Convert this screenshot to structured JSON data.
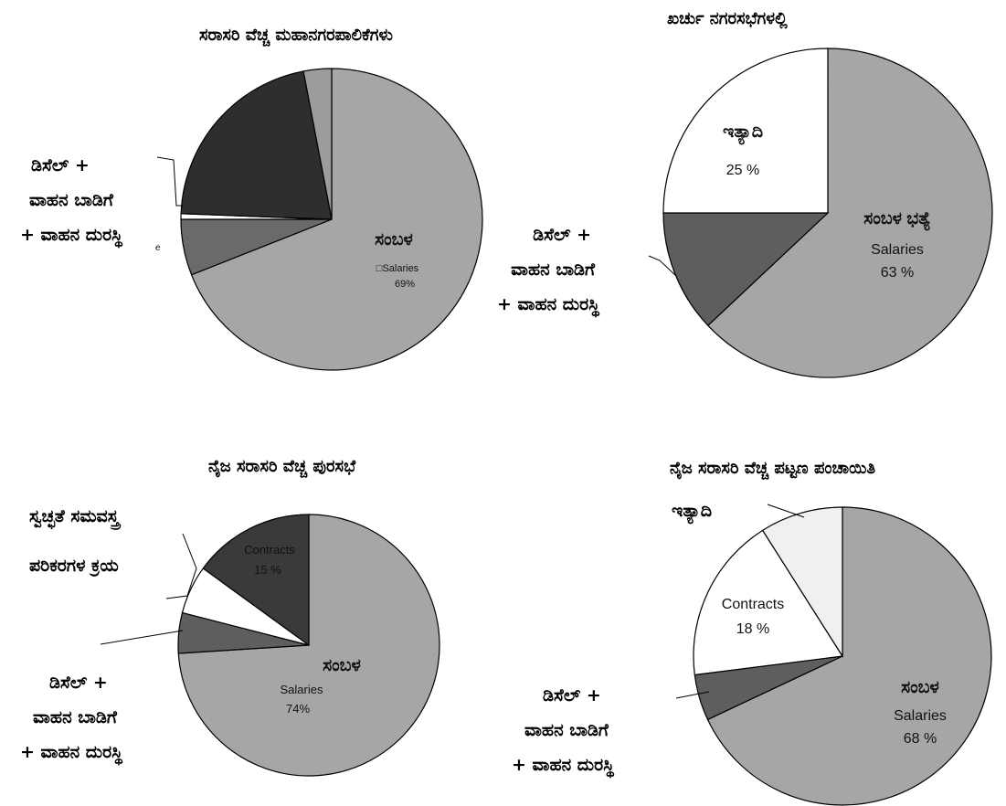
{
  "chart_data": [
    {
      "type": "pie",
      "title": "ಸರಾಸರಿ ವೆಚ್ಚ ಮಹಾನಗರಪಾಲಿಕೆಗಳು",
      "slices": [
        {
          "label": "ಸಂಬಳ",
          "sublabel": "□Salaries",
          "value": 69,
          "value_text": "69%",
          "color": "#a6a6a6"
        },
        {
          "label": "",
          "value": 6,
          "color": "#6a6a6a"
        },
        {
          "label": "ಡಿಸೆಲ್ + ವಾಹನ ಬಾಡಿಗೆ + ವಾಹನ ದುರಸ್ಥಿ",
          "value": 0.6,
          "color": "#ffffff"
        },
        {
          "label": "",
          "value": 21.4,
          "color": "#2e2e2e"
        },
        {
          "label": "",
          "value": 3,
          "color": "#9c9c9c"
        }
      ],
      "side_labels": [
        "ಡಿಸೆಲ್ +",
        "ವಾಹನ ಬಾಡಿಗೆ",
        "+ ವಾಹನ ದುರಸ್ಥಿ"
      ],
      "fragment": "e"
    },
    {
      "type": "pie",
      "title": "ಖರ್ಚು ನಗರಸಭೆಗಳಲ್ಲಿ",
      "slices": [
        {
          "label": "ಸಂಬಳ ಭತ್ಯೆ",
          "sublabel": "Salaries",
          "value": 63,
          "value_text": "63 %",
          "color": "#a6a6a6"
        },
        {
          "label": "ಡಿಸೆಲ್ + ವಾಹನ ಬಾಡಿಗೆ + ವಾಹನ ದುರಸ್ಥಿ",
          "value": 12,
          "color": "#5e5e5e"
        },
        {
          "label": "ಇತ್ಯಾದಿ",
          "value": 25,
          "value_text": "25 %",
          "color": "#ffffff"
        }
      ],
      "side_labels": [
        "ಡಿಸೆಲ್ +",
        "ವಾಹನ ಬಾಡಿಗೆ",
        "+ ವಾಹನ ದುರಸ್ಥಿ"
      ]
    },
    {
      "type": "pie",
      "title": "ನೈಜ ಸರಾಸರಿ ವೆಚ್ಚ ಪುರಸಭೆ",
      "slices": [
        {
          "label": "ಸಂಬಳ",
          "sublabel": "Salaries",
          "value": 74,
          "value_text": "74%",
          "color": "#a6a6a6"
        },
        {
          "label": "ಡಿಸೆಲ್ + ವಾಹನ ಬಾಡಿಗೆ + ವಾಹನ ದುರಸ್ಥಿ",
          "value": 5,
          "color": "#5e5e5e"
        },
        {
          "label": "ಸ್ವಚ್ಛತೆ ಸಮವಸ್ತ್ರ ಪರಿಕರಗಳ ಕ್ರಯ",
          "value": 6,
          "color": "#ffffff"
        },
        {
          "label": "Contracts",
          "value": 15,
          "value_text": "15 %",
          "color": "#3a3a3a"
        }
      ],
      "side_labels_top": [
        "ಸ್ವಚ್ಛತೆ ಸಮವಸ್ತ್ರ",
        "ಪರಿಕರಗಳ ಕ್ರಯ"
      ],
      "side_labels": [
        "ಡಿಸೆಲ್ +",
        "ವಾಹನ ಬಾಡಿಗೆ",
        "+ ವಾಹನ ದುರಸ್ಥಿ"
      ]
    },
    {
      "type": "pie",
      "title": "ನೈಜ ಸರಾಸರಿ ವೆಚ್ಚ ಪಟ್ಟಣ ಪಂಚಾಯಿತಿ",
      "slices": [
        {
          "label": "ಸಂಬಳ",
          "sublabel": "Salaries",
          "value": 68,
          "value_text": "68 %",
          "color": "#a6a6a6"
        },
        {
          "label": "ಡಿಸೆಲ್ + ವಾಹನ ಬಾಡಿಗೆ + ವಾಹನ ದುರಸ್ಥಿ",
          "value": 5,
          "color": "#5e5e5e"
        },
        {
          "label": "Contracts",
          "value": 18,
          "value_text": "18 %",
          "color": "#ffffff"
        },
        {
          "label": "ಇತ್ಯಾದಿ",
          "value": 9,
          "color": "#f0f0f0"
        }
      ],
      "side_labels_top": [
        "ಇತ್ಯಾದಿ"
      ],
      "side_labels": [
        "ಡಿಸೆಲ್ +",
        "ವಾಹನ ಬಾಡಿಗೆ",
        "+ ವಾಹನ ದುರಸ್ಥಿ"
      ]
    }
  ]
}
